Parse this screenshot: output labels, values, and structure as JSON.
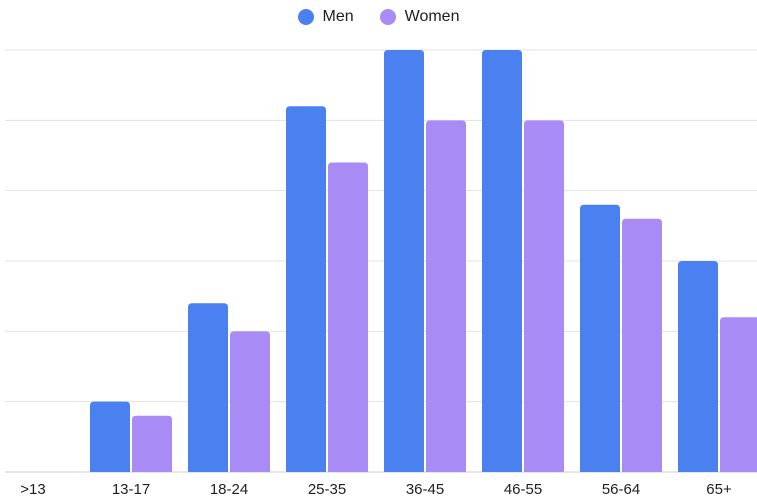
{
  "chart_data": {
    "type": "bar",
    "categories": [
      ">13",
      "13-17",
      "18-24",
      "25-35",
      "36-45",
      "46-55",
      "56-64",
      "65+"
    ],
    "series": [
      {
        "name": "Men",
        "color": "#4a80f0",
        "values": [
          0,
          5,
          12,
          26,
          30,
          30,
          19,
          15
        ]
      },
      {
        "name": "Women",
        "color": "#a98bf5",
        "values": [
          0,
          4,
          10,
          22,
          25,
          25,
          18,
          11
        ]
      }
    ],
    "ylim": [
      0,
      30
    ],
    "grid": true,
    "legend_position": "top-center",
    "title": "",
    "xlabel": "",
    "ylabel": ""
  }
}
